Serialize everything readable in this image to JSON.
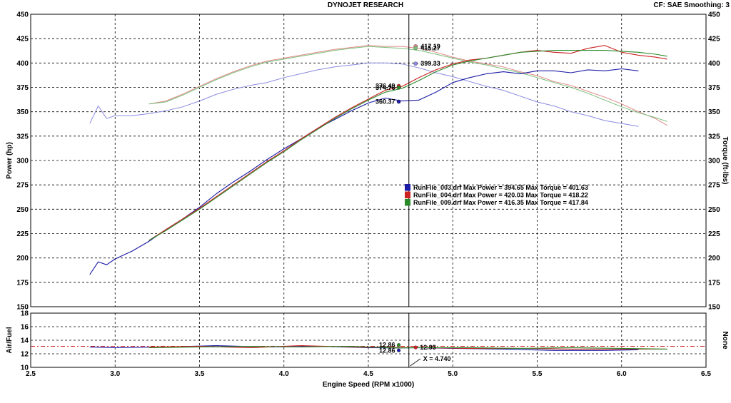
{
  "header": {
    "title": "DYNOJET RESEARCH",
    "cf_label": "CF: SAE  Smoothing: 3"
  },
  "chart_data": {
    "type": "line",
    "x_label": "Engine Speed (RPM x1000)",
    "x_range": [
      2.5,
      6.5
    ],
    "x_ticks": [
      "2.5",
      "3.0",
      "3.5",
      "4.0",
      "4.5",
      "5.0",
      "5.5",
      "6.0",
      "6.5"
    ],
    "top": {
      "y_left_label": "Power (hp)",
      "y_right_label": "Torque (ft-lbs)",
      "y_range": [
        150,
        450
      ],
      "y_ticks": [
        "450",
        "425",
        "400",
        "375",
        "350",
        "325",
        "300",
        "275",
        "250",
        "225",
        "200",
        "175",
        "150"
      ],
      "power_series": [
        {
          "name": "RunFile_003.drf",
          "color": "#1a1aa6",
          "x": [
            2.85,
            2.9,
            2.95,
            3.0,
            3.1,
            3.2,
            3.3,
            3.4,
            3.5,
            3.6,
            3.7,
            3.8,
            3.9,
            4.0,
            4.1,
            4.2,
            4.3,
            4.4,
            4.5,
            4.6,
            4.7,
            4.8,
            4.9,
            5.0,
            5.1,
            5.2,
            5.3,
            5.4,
            5.5,
            5.6,
            5.7,
            5.8,
            5.9,
            6.0,
            6.1
          ],
          "y": [
            183,
            196,
            193,
            199,
            207,
            217,
            229,
            240,
            252,
            266,
            278,
            289,
            301,
            312,
            322,
            333,
            342,
            351,
            359,
            364,
            361,
            362,
            370,
            380,
            385,
            389,
            391,
            389,
            392,
            392,
            390,
            393,
            392,
            394,
            392
          ]
        },
        {
          "name": "RunFile_004.drf",
          "color": "#cc2222",
          "x": [
            3.2,
            3.3,
            3.4,
            3.5,
            3.6,
            3.7,
            3.8,
            3.9,
            4.0,
            4.1,
            4.2,
            4.3,
            4.4,
            4.5,
            4.6,
            4.7,
            4.8,
            4.9,
            5.0,
            5.1,
            5.2,
            5.3,
            5.4,
            5.5,
            5.6,
            5.7,
            5.8,
            5.9,
            6.0,
            6.1,
            6.2,
            6.27
          ],
          "y": [
            218,
            229,
            240,
            251,
            263,
            275,
            287,
            299,
            310,
            322,
            333,
            344,
            354,
            363,
            372,
            376,
            385,
            393,
            399,
            403,
            405,
            408,
            411,
            413,
            411,
            410,
            415,
            418,
            411,
            408,
            406,
            404
          ]
        },
        {
          "name": "RunFile_009.drf",
          "color": "#2a8a2a",
          "x": [
            3.2,
            3.3,
            3.4,
            3.5,
            3.6,
            3.7,
            3.8,
            3.9,
            4.0,
            4.1,
            4.2,
            4.3,
            4.4,
            4.5,
            4.6,
            4.7,
            4.8,
            4.9,
            5.0,
            5.1,
            5.2,
            5.3,
            5.4,
            5.5,
            5.6,
            5.7,
            5.8,
            5.9,
            6.0,
            6.1,
            6.2,
            6.27
          ],
          "y": [
            218,
            228,
            239,
            250,
            262,
            274,
            286,
            298,
            309,
            321,
            332,
            343,
            353,
            362,
            370,
            374,
            382,
            391,
            398,
            402,
            405,
            408,
            411,
            412,
            413,
            413,
            413,
            413,
            412,
            411,
            409,
            407
          ]
        }
      ],
      "torque_series": [
        {
          "name": "RunFile_003.drf",
          "color": "#8a8ae0",
          "x": [
            2.85,
            2.9,
            2.95,
            3.0,
            3.1,
            3.2,
            3.3,
            3.4,
            3.5,
            3.6,
            3.7,
            3.8,
            3.9,
            4.0,
            4.1,
            4.2,
            4.3,
            4.4,
            4.5,
            4.6,
            4.7,
            4.8,
            4.9,
            5.0,
            5.1,
            5.2,
            5.3,
            5.4,
            5.5,
            5.6,
            5.7,
            5.8,
            5.9,
            6.0,
            6.1
          ],
          "y": [
            338,
            356,
            343,
            346,
            346,
            348,
            351,
            355,
            361,
            368,
            373,
            377,
            380,
            385,
            389,
            393,
            396,
            398,
            400,
            400,
            399,
            395,
            390,
            386,
            381,
            376,
            372,
            366,
            360,
            356,
            350,
            346,
            341,
            338,
            335
          ]
        },
        {
          "name": "RunFile_004.drf",
          "color": "#e08888",
          "x": [
            3.2,
            3.3,
            3.4,
            3.5,
            3.6,
            3.7,
            3.8,
            3.9,
            4.0,
            4.1,
            4.2,
            4.3,
            4.4,
            4.5,
            4.6,
            4.7,
            4.8,
            4.9,
            5.0,
            5.1,
            5.2,
            5.3,
            5.4,
            5.5,
            5.6,
            5.7,
            5.8,
            5.9,
            6.0,
            6.1,
            6.2,
            6.27
          ],
          "y": [
            358,
            361,
            368,
            376,
            384,
            391,
            397,
            402,
            405,
            408,
            411,
            414,
            416,
            418,
            417,
            417,
            415,
            411,
            406,
            402,
            399,
            396,
            391,
            387,
            381,
            377,
            371,
            365,
            358,
            350,
            343,
            336
          ]
        },
        {
          "name": "RunFile_009.drf",
          "color": "#7ac07a",
          "x": [
            3.2,
            3.3,
            3.4,
            3.5,
            3.6,
            3.7,
            3.8,
            3.9,
            4.0,
            4.1,
            4.2,
            4.3,
            4.4,
            4.5,
            4.6,
            4.7,
            4.8,
            4.9,
            5.0,
            5.1,
            5.2,
            5.3,
            5.4,
            5.5,
            5.6,
            5.7,
            5.8,
            5.9,
            6.0,
            6.1,
            6.2,
            6.27
          ],
          "y": [
            358,
            360,
            367,
            375,
            383,
            390,
            396,
            401,
            404,
            407,
            410,
            413,
            415,
            417,
            416,
            415,
            413,
            409,
            405,
            401,
            398,
            394,
            390,
            385,
            380,
            375,
            369,
            362,
            355,
            349,
            344,
            340
          ]
        }
      ],
      "cursor_x": 4.74,
      "cursor_labels": [
        {
          "text": "417.19",
          "series": "torque_004",
          "x": 4.78,
          "y": 417.19,
          "color": "#e08888",
          "side": "right"
        },
        {
          "text": "415.27",
          "series": "torque_009",
          "x": 4.78,
          "y": 415.27,
          "color": "#7ac07a",
          "side": "right"
        },
        {
          "text": "399.33",
          "series": "torque_003",
          "x": 4.78,
          "y": 399.33,
          "color": "#8a8ae0",
          "side": "right"
        },
        {
          "text": "376.49",
          "series": "power_004",
          "x": 4.68,
          "y": 376.49,
          "color": "#cc2222",
          "side": "left"
        },
        {
          "text": "374.76",
          "series": "power_009",
          "x": 4.68,
          "y": 374.76,
          "color": "#2a8a2a",
          "side": "left"
        },
        {
          "text": "360.37",
          "series": "power_003",
          "x": 4.68,
          "y": 360.37,
          "color": "#1a1aa6",
          "side": "left"
        }
      ],
      "legend": [
        {
          "text": "RunFile_003.drf Max Power = 394.65 Max Torque = 401.63",
          "color": "#1a1aa6"
        },
        {
          "text": "RunFile_004.drf Max Power = 420.03 Max Torque = 418.22",
          "color": "#cc2222"
        },
        {
          "text": "RunFile_009.drf Max Power = 416.35 Max Torque = 417.84",
          "color": "#2a8a2a"
        }
      ]
    },
    "bottom": {
      "y_left_label": "Air/Fuel",
      "y_right_label": "None",
      "y_range": [
        10,
        18
      ],
      "y_ticks": [
        "18",
        "16",
        "14",
        "12",
        "10"
      ],
      "reference_line": 13.1,
      "afr_series": [
        {
          "name": "RunFile_003.drf",
          "color": "#1a1aa6",
          "x": [
            2.85,
            3.0,
            3.3,
            3.6,
            3.9,
            4.2,
            4.5,
            4.68,
            4.8,
            5.0,
            5.3,
            5.6,
            5.9,
            6.1
          ],
          "y": [
            13.0,
            12.9,
            13.0,
            13.2,
            13.0,
            13.1,
            12.9,
            12.86,
            12.9,
            12.8,
            12.7,
            12.5,
            12.5,
            12.6
          ]
        },
        {
          "name": "RunFile_004.drf",
          "color": "#cc2222",
          "x": [
            3.2,
            3.5,
            3.8,
            4.1,
            4.4,
            4.68,
            4.8,
            5.1,
            5.4,
            5.7,
            6.0,
            6.27
          ],
          "y": [
            13.0,
            13.1,
            12.9,
            13.2,
            13.0,
            12.93,
            12.9,
            12.8,
            12.8,
            12.7,
            12.7,
            12.7
          ]
        },
        {
          "name": "RunFile_009.drf",
          "color": "#2a8a2a",
          "x": [
            3.2,
            3.5,
            3.8,
            4.1,
            4.4,
            4.68,
            4.8,
            5.1,
            5.4,
            5.7,
            6.0,
            6.27
          ],
          "y": [
            12.9,
            13.0,
            13.1,
            13.0,
            13.1,
            12.86,
            12.9,
            12.9,
            12.8,
            12.9,
            12.8,
            12.7
          ]
        }
      ],
      "cursor_labels": [
        {
          "text": "12.86",
          "x": 4.68,
          "y": 13.3,
          "color": "#2a8a2a",
          "side": "left"
        },
        {
          "text": "12.93",
          "x": 4.78,
          "y": 12.93,
          "color": "#cc2222",
          "side": "right"
        },
        {
          "text": "12.86",
          "x": 4.68,
          "y": 12.5,
          "color": "#1a1aa6",
          "side": "left"
        }
      ],
      "cursor_readout": "X = 4.740"
    }
  }
}
